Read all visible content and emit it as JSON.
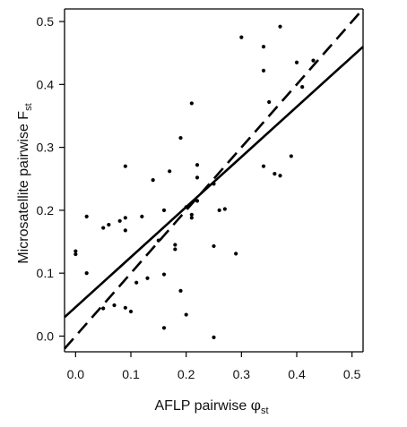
{
  "chart_data": {
    "type": "scatter",
    "xlabel": {
      "main": "AFLP pairwise ",
      "symbol": "φ",
      "sub": "st"
    },
    "ylabel": {
      "main": "Microsatellite pairwise F",
      "sub": "st"
    },
    "xlim": [
      -0.02,
      0.52
    ],
    "ylim": [
      -0.025,
      0.52
    ],
    "x_ticks": [
      0.0,
      0.1,
      0.2,
      0.3,
      0.4,
      0.5
    ],
    "x_tick_labels": [
      "0.0",
      "0.1",
      "0.2",
      "0.3",
      "0.4",
      "0.5"
    ],
    "y_ticks": [
      0.0,
      0.1,
      0.2,
      0.3,
      0.4,
      0.5
    ],
    "y_tick_labels": [
      "0.0",
      "0.1",
      "0.2",
      "0.3",
      "0.4",
      "0.5"
    ],
    "grid": false,
    "points": [
      {
        "x": 0.0,
        "y": 0.135
      },
      {
        "x": 0.0,
        "y": 0.13
      },
      {
        "x": 0.02,
        "y": 0.19
      },
      {
        "x": 0.02,
        "y": 0.1
      },
      {
        "x": 0.05,
        "y": 0.172
      },
      {
        "x": 0.06,
        "y": 0.177
      },
      {
        "x": 0.05,
        "y": 0.044
      },
      {
        "x": 0.07,
        "y": 0.049
      },
      {
        "x": 0.08,
        "y": 0.183
      },
      {
        "x": 0.09,
        "y": 0.188
      },
      {
        "x": 0.09,
        "y": 0.168
      },
      {
        "x": 0.09,
        "y": 0.27
      },
      {
        "x": 0.09,
        "y": 0.045
      },
      {
        "x": 0.1,
        "y": 0.039
      },
      {
        "x": 0.11,
        "y": 0.085
      },
      {
        "x": 0.12,
        "y": 0.19
      },
      {
        "x": 0.13,
        "y": 0.092
      },
      {
        "x": 0.14,
        "y": 0.248
      },
      {
        "x": 0.15,
        "y": 0.152
      },
      {
        "x": 0.16,
        "y": 0.2
      },
      {
        "x": 0.16,
        "y": 0.098
      },
      {
        "x": 0.16,
        "y": 0.013
      },
      {
        "x": 0.17,
        "y": 0.262
      },
      {
        "x": 0.18,
        "y": 0.145
      },
      {
        "x": 0.18,
        "y": 0.138
      },
      {
        "x": 0.19,
        "y": 0.315
      },
      {
        "x": 0.19,
        "y": 0.072
      },
      {
        "x": 0.2,
        "y": 0.034
      },
      {
        "x": 0.2,
        "y": 0.205
      },
      {
        "x": 0.21,
        "y": 0.193
      },
      {
        "x": 0.21,
        "y": 0.188
      },
      {
        "x": 0.21,
        "y": 0.37
      },
      {
        "x": 0.22,
        "y": 0.272
      },
      {
        "x": 0.22,
        "y": 0.252
      },
      {
        "x": 0.22,
        "y": 0.215
      },
      {
        "x": 0.25,
        "y": 0.242
      },
      {
        "x": 0.25,
        "y": 0.143
      },
      {
        "x": 0.25,
        "y": -0.002
      },
      {
        "x": 0.26,
        "y": 0.2
      },
      {
        "x": 0.27,
        "y": 0.202
      },
      {
        "x": 0.29,
        "y": 0.131
      },
      {
        "x": 0.3,
        "y": 0.475
      },
      {
        "x": 0.34,
        "y": 0.46
      },
      {
        "x": 0.34,
        "y": 0.422
      },
      {
        "x": 0.34,
        "y": 0.27
      },
      {
        "x": 0.35,
        "y": 0.372
      },
      {
        "x": 0.36,
        "y": 0.258
      },
      {
        "x": 0.37,
        "y": 0.255
      },
      {
        "x": 0.37,
        "y": 0.492
      },
      {
        "x": 0.39,
        "y": 0.286
      },
      {
        "x": 0.4,
        "y": 0.435
      },
      {
        "x": 0.41,
        "y": 0.396
      },
      {
        "x": 0.43,
        "y": 0.438
      }
    ],
    "lines": [
      {
        "style": "solid",
        "x": [
          -0.02,
          0.52
        ],
        "y": [
          0.03,
          0.46
        ]
      },
      {
        "style": "dashed",
        "x": [
          -0.02,
          0.52
        ],
        "y": [
          -0.02,
          0.52
        ]
      }
    ]
  }
}
